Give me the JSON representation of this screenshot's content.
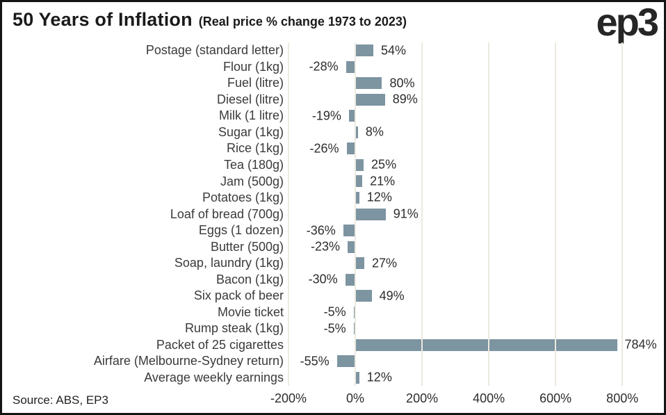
{
  "header": {
    "title": "50 Years of Inflation",
    "subtitle": "(Real price % change 1973 to 2023)",
    "logo": "ep3"
  },
  "footer": {
    "source": "Source: ABS, EP3"
  },
  "colors": {
    "bar": "#7D94A1",
    "grid": "#ECE9E0",
    "text": "#3A3A3A",
    "title": "#1A1A1A",
    "border": "#141414",
    "background": "#FFFFFF"
  },
  "chart_data": {
    "type": "bar",
    "orientation": "horizontal",
    "title": "50 Years of Inflation",
    "subtitle": "(Real price % change 1973 to 2023)",
    "categories": [
      "Postage (standard letter)",
      "Flour (1kg)",
      "Fuel (litre)",
      "Diesel (litre)",
      "Milk (1 litre)",
      "Sugar (1kg)",
      "Rice (1kg)",
      "Tea (180g)",
      "Jam (500g)",
      "Potatoes (1kg)",
      "Loaf of bread (700g)",
      "Eggs (1 dozen)",
      "Butter (500g)",
      "Soap, laundry (1kg)",
      "Bacon (1kg)",
      "Six pack of beer",
      "Movie ticket",
      "Rump steak (1kg)",
      "Packet of 25 cigarettes",
      "Airfare (Melbourne-Sydney return)",
      "Average weekly earnings"
    ],
    "values": [
      54,
      -28,
      80,
      89,
      -19,
      8,
      -26,
      25,
      21,
      12,
      91,
      -36,
      -23,
      27,
      -30,
      49,
      -5,
      -5,
      784,
      -55,
      12
    ],
    "value_labels": [
      "54%",
      "-28%",
      "80%",
      "89%",
      "-19%",
      "8%",
      "-26%",
      "25%",
      "21%",
      "12%",
      "91%",
      "-36%",
      "-23%",
      "27%",
      "-30%",
      "49%",
      "-5%",
      "-5%",
      "784%",
      "-55%",
      "12%"
    ],
    "xlabel": "",
    "ylabel": "",
    "xlim": [
      -200,
      912
    ],
    "x_ticks": [
      -200,
      0,
      200,
      400,
      600,
      800
    ],
    "x_tick_labels": [
      "-200%",
      "0%",
      "200%",
      "400%",
      "600%",
      "800%"
    ],
    "grid": true,
    "legend": false,
    "bar_color": "#7D94A1",
    "grid_color": "#ECE9E0"
  }
}
